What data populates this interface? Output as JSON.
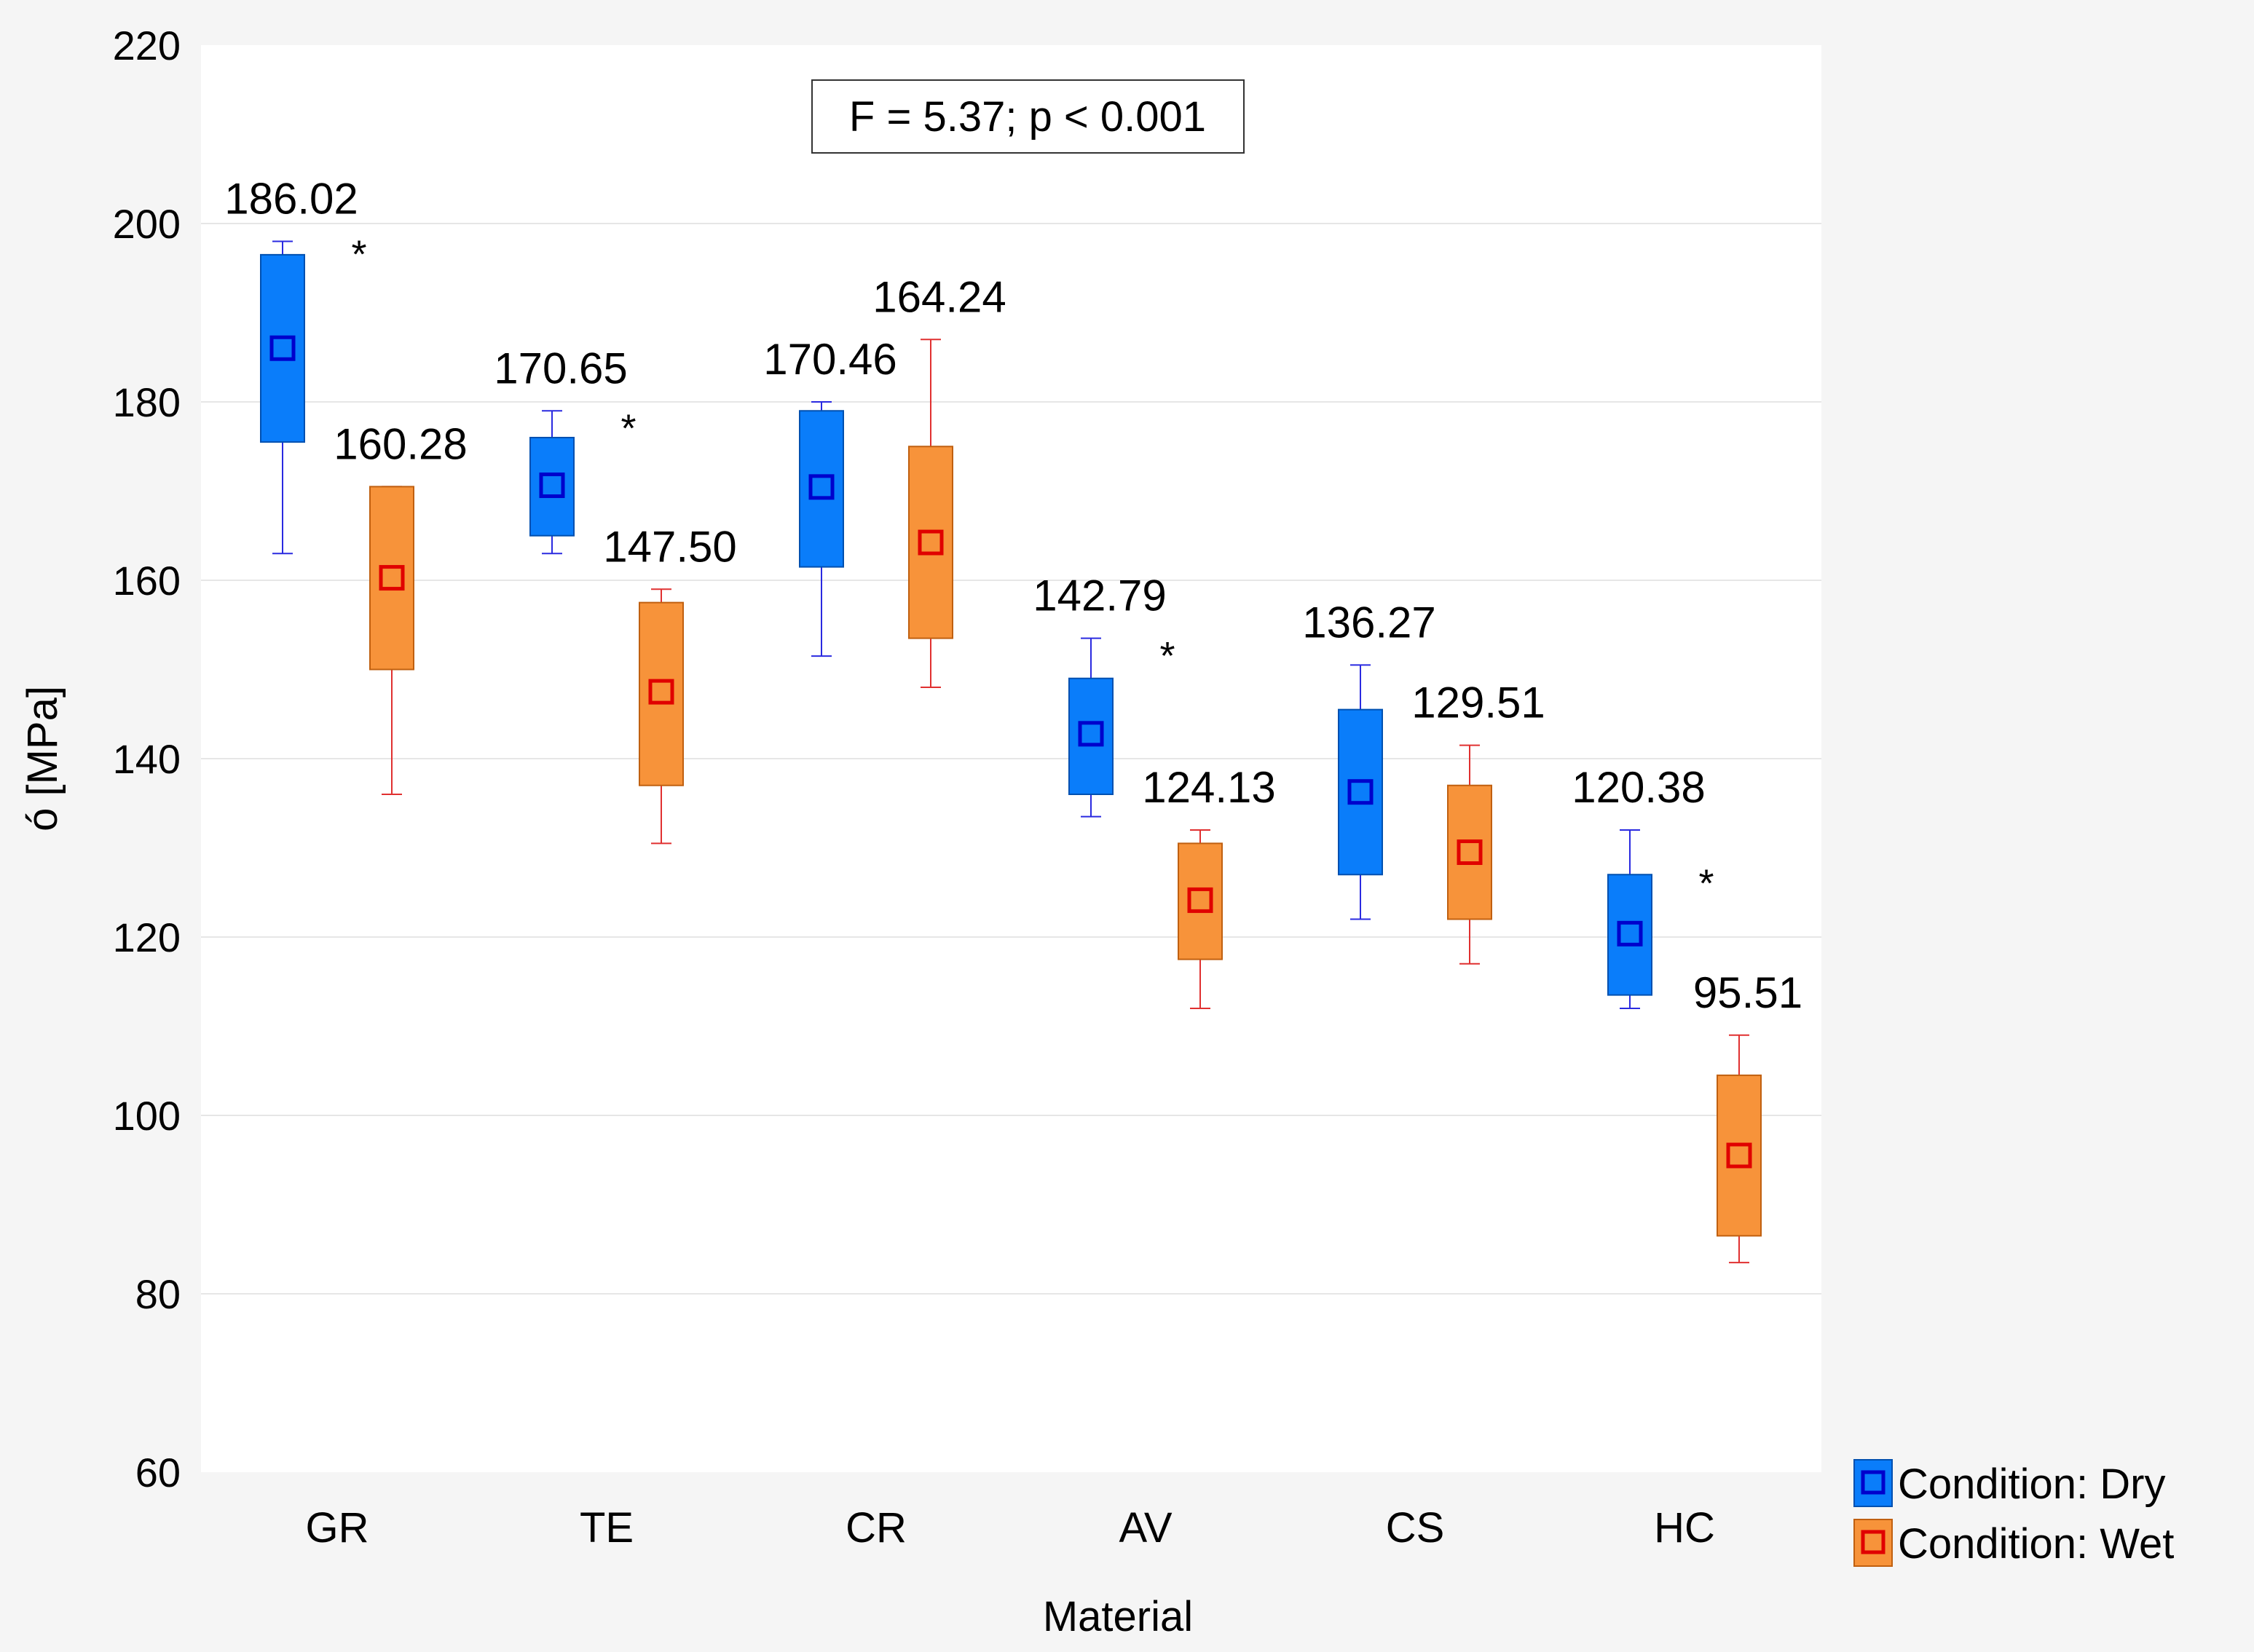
{
  "chart_data": {
    "type": "box",
    "xlabel": "Material",
    "ylabel": "ó [MPa]",
    "ylim": [
      60,
      220
    ],
    "yticks": [
      60,
      80,
      100,
      120,
      140,
      160,
      180,
      200,
      220
    ],
    "grid": true,
    "annotation": "F = 5.37; p < 0.001",
    "legend_position": "bottom-right",
    "categories": [
      "GR",
      "TE",
      "CR",
      "AV",
      "CS",
      "HC"
    ],
    "series": [
      {
        "name": "Condition: Dry",
        "box_color": "#0a7dfa",
        "marker_color": "#0000cc",
        "whisker_color": "#2a2ae0",
        "boxes": [
          {
            "mean": 186.02,
            "mean_label": "186.02",
            "q1": 175.5,
            "q3": 196.5,
            "min": 163.0,
            "max": 198.0
          },
          {
            "mean": 170.65,
            "mean_label": "170.65",
            "q1": 165.0,
            "q3": 176.0,
            "min": 163.0,
            "max": 179.0
          },
          {
            "mean": 170.46,
            "mean_label": "170.46",
            "q1": 161.5,
            "q3": 179.0,
            "min": 151.5,
            "max": 180.0
          },
          {
            "mean": 142.79,
            "mean_label": "142.79",
            "q1": 136.0,
            "q3": 149.0,
            "min": 133.5,
            "max": 153.5
          },
          {
            "mean": 136.27,
            "mean_label": "136.27",
            "q1": 127.0,
            "q3": 145.5,
            "min": 122.0,
            "max": 150.5
          },
          {
            "mean": 120.38,
            "mean_label": "120.38",
            "q1": 113.5,
            "q3": 127.0,
            "min": 112.0,
            "max": 132.0
          }
        ]
      },
      {
        "name": "Condition: Wet",
        "box_color": "#f7933a",
        "marker_color": "#e00000",
        "whisker_color": "#e03030",
        "boxes": [
          {
            "mean": 160.28,
            "mean_label": "160.28",
            "q1": 150.0,
            "q3": 170.5,
            "min": 136.0,
            "max": 170.5
          },
          {
            "mean": 147.5,
            "mean_label": "147.50",
            "q1": 137.0,
            "q3": 157.5,
            "min": 130.5,
            "max": 159.0
          },
          {
            "mean": 164.24,
            "mean_label": "164.24",
            "q1": 153.5,
            "q3": 175.0,
            "min": 148.0,
            "max": 187.0
          },
          {
            "mean": 124.13,
            "mean_label": "124.13",
            "q1": 117.5,
            "q3": 130.5,
            "min": 112.0,
            "max": 132.0
          },
          {
            "mean": 129.51,
            "mean_label": "129.51",
            "q1": 122.0,
            "q3": 137.0,
            "min": 117.0,
            "max": 141.5
          },
          {
            "mean": 95.51,
            "mean_label": "95.51",
            "q1": 86.5,
            "q3": 104.5,
            "min": 83.5,
            "max": 109.0
          }
        ]
      }
    ],
    "significance": [
      {
        "category": "GR",
        "symbol": "*",
        "y": 197.5
      },
      {
        "category": "TE",
        "symbol": "*",
        "y": 178.0
      },
      {
        "category": "AV",
        "symbol": "*",
        "y": 152.5
      },
      {
        "category": "HC",
        "symbol": "*",
        "y": 127.0
      }
    ]
  }
}
